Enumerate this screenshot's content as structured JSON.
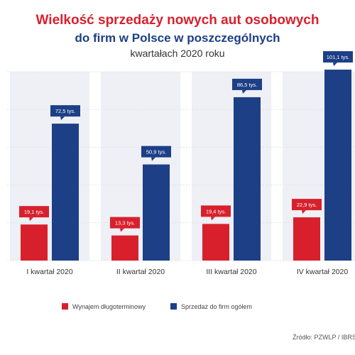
{
  "title": {
    "line1": "Wielkość sprzedaży nowych aut osobowych",
    "line2": "do firm w Polsce w poszczególnych",
    "line3": "kwartałach 2020 roku"
  },
  "source": "Źródło: PZWLP / IBRS",
  "colors": {
    "red": "#d8202d",
    "blue": "#1c3f86",
    "stripe": "#eef0f5",
    "grid": "#dfe2ea"
  },
  "chart_data": {
    "type": "bar",
    "categories": [
      "I kwartał 2020",
      "II kwartał 2020",
      "III kwartał 2020",
      "IV kwartał 2020"
    ],
    "series": [
      {
        "name": "Wynajem długoterminowy",
        "values": [
          19.1,
          13.3,
          19.4,
          22.9
        ],
        "labels": [
          "19,1 tys.",
          "13,3 tys.",
          "19,4 tys.",
          "22,9 tys."
        ]
      },
      {
        "name": "Sprzedaż do firm ogółem",
        "values": [
          72.5,
          50.9,
          86.5,
          101.1
        ],
        "labels": [
          "72,5 tys.",
          "50,9 tys.",
          "86,5 tys.",
          "101,1 tys."
        ]
      }
    ],
    "ylim": [
      0,
      100
    ],
    "yticks": [
      0,
      20,
      40,
      60,
      80,
      100
    ],
    "ytick_labels": [
      "",
      "",
      "",
      "",
      "",
      ""
    ],
    "grid": true,
    "legend_position": "bottom"
  }
}
